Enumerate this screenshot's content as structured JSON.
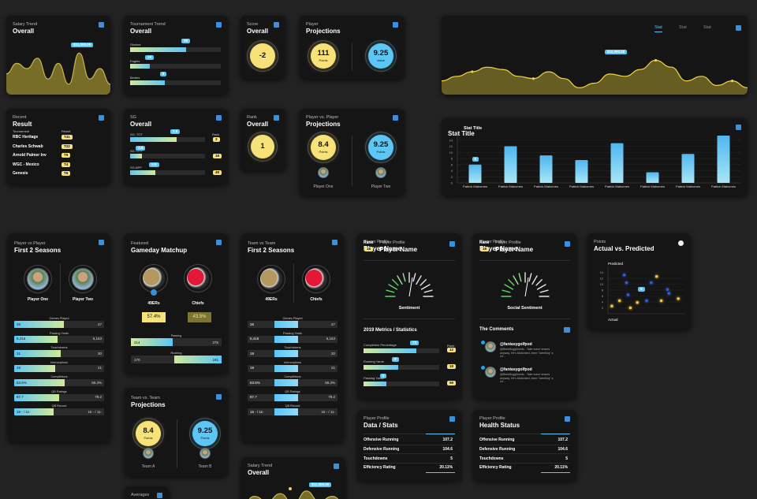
{
  "salary_trend": {
    "subtitle": "Salary Trend",
    "title": "Overall",
    "badge": "$11,000.00",
    "ylim": [
      0,
      10
    ],
    "values": [
      4,
      6,
      5,
      7,
      3,
      6,
      2,
      8,
      3,
      5,
      2
    ]
  },
  "tournament_trend": {
    "subtitle": "Tournament Trend",
    "title": "Overall",
    "rows": [
      {
        "label": "Strokes",
        "value": "55"
      },
      {
        "label": "Eagles",
        "value": "10"
      },
      {
        "label": "Birdies",
        "value": "8"
      }
    ]
  },
  "score": {
    "subtitle": "Score",
    "title": "Overall",
    "value": "-2"
  },
  "player_projections": {
    "subtitle": "Player",
    "title": "Projections",
    "items": [
      {
        "value": "111",
        "label": "Points"
      },
      {
        "value": "9.25",
        "label": "Value"
      }
    ]
  },
  "stat_trend": {
    "tabs": [
      "Stat",
      "Stat",
      "Stat"
    ],
    "badge": "$11,000.00",
    "ylim": [
      0,
      10
    ],
    "values": [
      3,
      4,
      5,
      6,
      5.5,
      4,
      3.5,
      5,
      3.5,
      1.5,
      2.5,
      4.5,
      4,
      5.5,
      7.5,
      6,
      3,
      4,
      2,
      3,
      1.5
    ]
  },
  "recent_result": {
    "subtitle": "Recent",
    "title": "Result",
    "headers": [
      "Tournament",
      "Result"
    ],
    "rows": [
      [
        "RBC Heritage",
        "T41"
      ],
      [
        "Charles Schwab",
        "T22"
      ],
      [
        "Arnold Palmer Inv",
        "T5"
      ],
      [
        "WGC - Mexico",
        "T4"
      ],
      [
        "Genesis",
        "T6"
      ]
    ]
  },
  "sg": {
    "subtitle": "SG",
    "title": "Overall",
    "rank_header": "Rank",
    "rows": [
      {
        "label": "SG: TOT",
        "value": "1.6",
        "rank": "3"
      },
      {
        "label": "SG: OTT",
        "value": "0.8",
        "rank": "18"
      },
      {
        "label": "SG:APP",
        "value": "0.5",
        "rank": "49"
      }
    ]
  },
  "rank": {
    "subtitle": "Rank",
    "title": "Overall",
    "value": "1"
  },
  "pvp_projections": {
    "subtitle": "Player vs. Player",
    "title": "Projections",
    "items": [
      {
        "value": "8.4",
        "label": "Points",
        "name": "Player One"
      },
      {
        "value": "9.25",
        "label": "Points",
        "name": "Player Two"
      }
    ]
  },
  "bar_chart": {
    "type": "bar",
    "title": "Stat Title",
    "badge": "6",
    "categories": [
      "Patrick Mahomes",
      "Patrick Mahomes",
      "Patrick Mahomes",
      "Patrick Mahomes",
      "Patrick Mahomes",
      "Patrick Mahomes",
      "Patrick Mahomes",
      "Patrick Mahomes"
    ],
    "values": [
      6,
      12,
      9,
      7.5,
      13,
      3.5,
      9.5,
      15.5
    ],
    "ylim": [
      0,
      16
    ],
    "yticks": [
      0,
      2,
      4,
      6,
      8,
      10,
      12,
      14
    ],
    "grid": true
  },
  "pvp_seasons": {
    "subtitle": "Player vs Player",
    "title": "First 2 Seasons",
    "names": [
      "Player One",
      "Player Two"
    ],
    "rows": [
      {
        "label": "Games Played",
        "left": "26",
        "right": "27"
      },
      {
        "label": "Passing Yards",
        "left": "5,416",
        "right": "5,163"
      },
      {
        "label": "Touchdowns",
        "left": "31",
        "right": "30"
      },
      {
        "label": "Interceptions",
        "left": "19",
        "right": "21"
      },
      {
        "label": "Completions",
        "left": "63.5%",
        "right": "56.3%"
      },
      {
        "label": "QB Ratings",
        "left": "87.7",
        "right": "78.2"
      },
      {
        "label": "QB Record",
        "left": "15 - / 11-",
        "right": "15 - / 11-"
      }
    ]
  },
  "matchup": {
    "subtitle": "Featured",
    "title": "Gameday Matchup",
    "names": [
      "49ERs",
      "Chiefs"
    ],
    "percents": [
      "57.4%",
      "43.5%"
    ],
    "rows": [
      {
        "label": "Passing",
        "left": "214",
        "right": "275"
      },
      {
        "label": "Rushing",
        "left": "170",
        "right": "181"
      }
    ]
  },
  "tvt_seasons": {
    "subtitle": "Team vs Team",
    "title": "First 2 Seasons",
    "names": [
      "49ERs",
      "Chiefs"
    ],
    "rows": [
      {
        "label": "Games Played",
        "left": "26",
        "right": "27"
      },
      {
        "label": "Passing Yards",
        "left": "5,416",
        "right": "5,163"
      },
      {
        "label": "Touchdowns",
        "left": "19",
        "right": "20"
      },
      {
        "label": "Interceptions",
        "left": "19",
        "right": "21"
      },
      {
        "label": "Completions",
        "left": "63.5%",
        "right": "56.3%"
      },
      {
        "label": "QB Ratings",
        "left": "87.7",
        "right": "78.2"
      },
      {
        "label": "QB Record",
        "left": "15 - / 11-",
        "right": "15 - / 11-"
      }
    ]
  },
  "profile_sentiment": {
    "rank_label": "Rank",
    "rank": "18",
    "subtitle": "Player Profile",
    "title": "Player Name",
    "gauge_label": "Sentiment",
    "section": "2019 Metrics / Statistics",
    "rank_header": "Rank",
    "rows": [
      {
        "label": "Completion Percentage",
        "value": "73",
        "rank": "12"
      },
      {
        "label": "Rushing Yards",
        "value": "8",
        "rank": "18"
      },
      {
        "label": "Passing Yards",
        "value": "5",
        "rank": "59"
      }
    ]
  },
  "profile_social": {
    "rank_label": "Rank",
    "rank": "18",
    "subtitle": "Player Profile",
    "title": "Player Name",
    "gauge_label": "Social Sentiment",
    "section": "The Comments",
    "comments": [
      {
        "handle": "@fantasygolfpod",
        "text": "@BeerMugg3shots - Take some shares anyway. He's Motivated, been \"tweeting\" a lot..."
      },
      {
        "handle": "@fantasygolfpod",
        "text": "@BeerMugg3shots - Take some shares anyway. He's Motivated, been \"tweeting\" a lot..."
      }
    ]
  },
  "scatter": {
    "type": "scatter",
    "subtitle": "Points",
    "title": "Actual vs. Predicted",
    "ylabel": "Predicted",
    "xlabel": "Actual",
    "badge": "6",
    "xlim": [
      0,
      10
    ],
    "ylim": [
      0,
      16
    ],
    "yticks": [
      2,
      4,
      6,
      8,
      10,
      12,
      14
    ],
    "series": [
      {
        "color": "#f5c542",
        "x": [
          0.5,
          1.5,
          2.9,
          3.8,
          6.3,
          6.9,
          9.1
        ],
        "y": [
          2.6,
          4.4,
          2,
          3.8,
          12.6,
          4.4,
          5.1
        ]
      },
      {
        "color": "#2f5fe0",
        "x": [
          2.1,
          2.4,
          2.6,
          4.3,
          5,
          5.6,
          7.7,
          7.9
        ],
        "y": [
          13.1,
          10.5,
          6.4,
          8.2,
          4.4,
          10.5,
          8.2,
          6.9
        ]
      }
    ]
  },
  "tvt_projections": {
    "subtitle": "Team vs. Team",
    "title": "Projections",
    "items": [
      {
        "value": "8.4",
        "label": "Points",
        "name": "Team A"
      },
      {
        "value": "9.25",
        "label": "Points",
        "name": "Team B"
      }
    ]
  },
  "data_stats": {
    "subtitle": "Player Profile",
    "title": "Data / Stats",
    "rows": [
      {
        "label": "Offensive Running",
        "value": "107.2"
      },
      {
        "label": "Defensive Running",
        "value": "104.6"
      },
      {
        "label": "Touchdowns",
        "value": "5"
      },
      {
        "label": "Efficiency Rating",
        "value": "20.11%"
      }
    ]
  },
  "health_status": {
    "subtitle": "Player Profile",
    "title": "Health Status",
    "rows": [
      {
        "label": "Offensive Running",
        "value": "107.2"
      },
      {
        "label": "Defensive Running",
        "value": "104.6"
      },
      {
        "label": "Touchdowns",
        "value": "5"
      },
      {
        "label": "Efficiency Rating",
        "value": "20.11%"
      }
    ]
  },
  "salary_trend_2": {
    "subtitle": "Salary Trend",
    "title": "Overall",
    "badge": "$11,000.00",
    "ylim": [
      0,
      10
    ],
    "values": [
      2,
      6,
      4,
      7,
      3,
      8,
      4,
      6,
      3
    ]
  },
  "averages": {
    "subtitle": "Averages"
  }
}
